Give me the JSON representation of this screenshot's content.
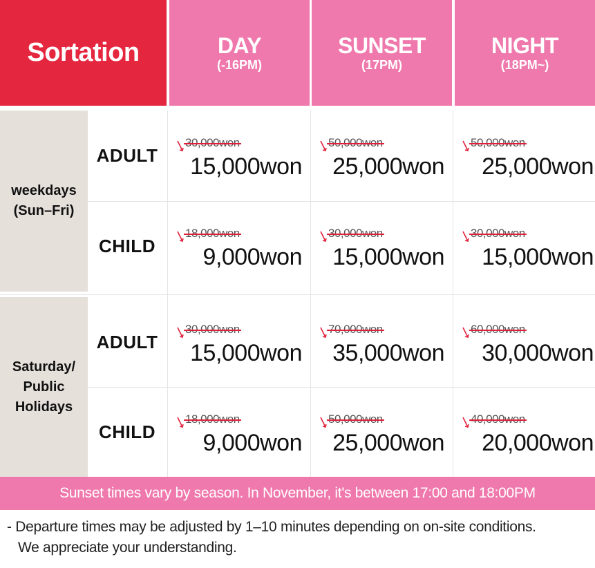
{
  "header": {
    "sortation": "Sortation",
    "columns": [
      {
        "name": "DAY",
        "hours": "(-16PM)"
      },
      {
        "name": "SUNSET",
        "hours": "(17PM)"
      },
      {
        "name": "NIGHT",
        "hours": "(18PM~)"
      }
    ]
  },
  "groups": [
    {
      "label": "weekdays\n(Sun–Fri)",
      "rows": [
        {
          "type": "ADULT",
          "prices": [
            {
              "original": "30,000won",
              "current": "15,000won"
            },
            {
              "original": "50,000won",
              "current": "25,000won"
            },
            {
              "original": "50,000won",
              "current": "25,000won"
            }
          ]
        },
        {
          "type": "CHILD",
          "prices": [
            {
              "original": "18,000won",
              "current": "9,000won"
            },
            {
              "original": "30,000won",
              "current": "15,000won"
            },
            {
              "original": "30,000won",
              "current": "15,000won"
            }
          ]
        }
      ]
    },
    {
      "label": "Saturday/\nPublic\nHolidays",
      "rows": [
        {
          "type": "ADULT",
          "prices": [
            {
              "original": "30,000won",
              "current": "15,000won"
            },
            {
              "original": "70,000won",
              "current": "35,000won"
            },
            {
              "original": "60,000won",
              "current": "30,000won"
            }
          ]
        },
        {
          "type": "CHILD",
          "prices": [
            {
              "original": "18,000won",
              "current": "9,000won"
            },
            {
              "original": "50,000won",
              "current": "25,000won"
            },
            {
              "original": "40,000won",
              "current": "20,000won"
            }
          ]
        }
      ]
    }
  ],
  "note": "Sunset times vary by season. In November, it's between 17:00 and 18:00PM",
  "footer": {
    "line1": "- Departure times may be adjusted by 1–10 minutes depending on on-site conditions.",
    "line2": "We appreciate your understanding."
  },
  "colors": {
    "header_red": "#e5263f",
    "header_pink": "#ef78ac",
    "group_beige": "#e6e0db",
    "strike_red": "#e0203a"
  }
}
